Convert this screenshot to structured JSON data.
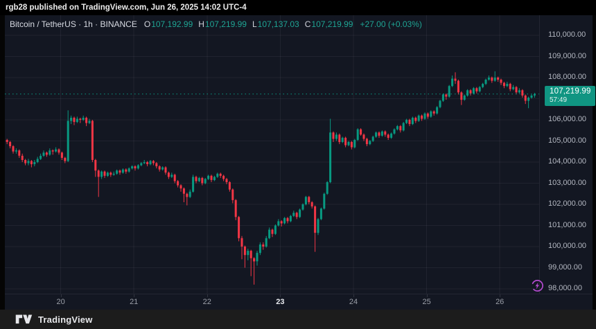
{
  "attribution": "rgb28 published on TradingView.com, Jun 26, 2025 14:02 UTC-4",
  "footer": {
    "brand": "TradingView"
  },
  "legend": {
    "symbol_title": "Bitcoin / TetherUS · 1h · BINANCE",
    "ohlc": [
      {
        "label": "O",
        "value": "107,192.99"
      },
      {
        "label": "H",
        "value": "107,219.99"
      },
      {
        "label": "L",
        "value": "107,137.03"
      },
      {
        "label": "C",
        "value": "107,219.99"
      }
    ],
    "change": "+27.00 (+0.03%)"
  },
  "price_scale": {
    "last_label": "107,219.99",
    "countdown": "57:49"
  },
  "icons": {
    "flash": "lightning-boost-icon",
    "logo": "tradingview-logo"
  },
  "colors": {
    "up": "#089981",
    "down": "#f23645",
    "badge": "#109582",
    "background": "#131722",
    "outer": "#000000",
    "flash_purple": "#b44bcf"
  },
  "chart_data": {
    "type": "candlestick",
    "pair": "Bitcoin / TetherUS",
    "interval": "1h",
    "exchange": "BINANCE",
    "last_price": 107219.99,
    "units": "OHLC values stored in thousands of USD",
    "ylim": [
      97650,
      110350
    ],
    "grid": true,
    "price_ticks": [
      {
        "v": 110000,
        "label": "110,000.00"
      },
      {
        "v": 109000,
        "label": "109,000.00"
      },
      {
        "v": 108000,
        "label": "108,000.00"
      },
      {
        "v": 107000,
        "label": ""
      },
      {
        "v": 106000,
        "label": "106,000.00"
      },
      {
        "v": 105000,
        "label": "105,000.00"
      },
      {
        "v": 104000,
        "label": "104,000.00"
      },
      {
        "v": 103000,
        "label": "103,000.00"
      },
      {
        "v": 102000,
        "label": "102,000.00"
      },
      {
        "v": 101000,
        "label": "101,000.00"
      },
      {
        "v": 100000,
        "label": "100,000.00"
      },
      {
        "v": 99000,
        "label": "99,000.00"
      },
      {
        "v": 98000,
        "label": "98,000.00"
      }
    ],
    "day_ticks": [
      {
        "i": 17.6,
        "label": "20",
        "bold": false
      },
      {
        "i": 41.6,
        "label": "21",
        "bold": false
      },
      {
        "i": 65.6,
        "label": "22",
        "bold": false
      },
      {
        "i": 89.6,
        "label": "23",
        "bold": true
      },
      {
        "i": 113.6,
        "label": "24",
        "bold": false
      },
      {
        "i": 137.6,
        "label": "25",
        "bold": false
      },
      {
        "i": 161.6,
        "label": "26",
        "bold": false
      }
    ],
    "candles_ohlc_k": [
      [
        105.05,
        105.1,
        104.85,
        104.95
      ],
      [
        104.95,
        105.0,
        104.65,
        104.75
      ],
      [
        104.75,
        104.8,
        104.4,
        104.5
      ],
      [
        104.5,
        104.65,
        104.4,
        104.55
      ],
      [
        104.55,
        104.6,
        104.2,
        104.3
      ],
      [
        104.3,
        104.4,
        104.0,
        104.1
      ],
      [
        104.1,
        104.15,
        103.85,
        103.95
      ],
      [
        103.95,
        104.15,
        103.85,
        104.05
      ],
      [
        104.05,
        104.1,
        103.75,
        103.9
      ],
      [
        103.9,
        104.1,
        103.8,
        104.0
      ],
      [
        104.0,
        104.25,
        103.95,
        104.15
      ],
      [
        104.15,
        104.4,
        104.1,
        104.3
      ],
      [
        104.3,
        104.55,
        104.25,
        104.45
      ],
      [
        104.45,
        104.5,
        104.25,
        104.35
      ],
      [
        104.35,
        104.65,
        104.3,
        104.55
      ],
      [
        104.55,
        104.6,
        104.35,
        104.5
      ],
      [
        104.5,
        104.7,
        104.45,
        104.6
      ],
      [
        104.6,
        104.65,
        104.35,
        104.45
      ],
      [
        104.45,
        104.5,
        104.1,
        104.2
      ],
      [
        104.2,
        104.25,
        103.95,
        104.05
      ],
      [
        104.05,
        106.45,
        104.0,
        105.95
      ],
      [
        105.95,
        106.2,
        105.8,
        106.1
      ],
      [
        106.1,
        106.15,
        105.75,
        105.9
      ],
      [
        105.9,
        106.15,
        105.85,
        106.05
      ],
      [
        106.05,
        106.1,
        105.85,
        106.0
      ],
      [
        106.0,
        106.2,
        105.95,
        106.1
      ],
      [
        106.1,
        106.15,
        105.7,
        105.85
      ],
      [
        105.85,
        106.05,
        105.8,
        105.95
      ],
      [
        105.95,
        106.0,
        104.0,
        104.1
      ],
      [
        104.1,
        104.15,
        103.3,
        103.6
      ],
      [
        103.6,
        103.65,
        102.35,
        103.3
      ],
      [
        103.3,
        103.6,
        103.2,
        103.55
      ],
      [
        103.55,
        103.6,
        103.25,
        103.35
      ],
      [
        103.35,
        103.55,
        103.3,
        103.5
      ],
      [
        103.5,
        103.55,
        103.3,
        103.4
      ],
      [
        103.4,
        103.55,
        103.35,
        103.45
      ],
      [
        103.45,
        103.65,
        103.4,
        103.6
      ],
      [
        103.6,
        103.65,
        103.4,
        103.5
      ],
      [
        103.5,
        103.7,
        103.45,
        103.65
      ],
      [
        103.65,
        103.7,
        103.45,
        103.55
      ],
      [
        103.55,
        103.75,
        103.5,
        103.7
      ],
      [
        103.7,
        103.85,
        103.65,
        103.8
      ],
      [
        103.8,
        103.85,
        103.6,
        103.7
      ],
      [
        103.7,
        103.9,
        103.65,
        103.85
      ],
      [
        103.85,
        104.0,
        103.8,
        103.95
      ],
      [
        103.95,
        104.1,
        103.9,
        104.0
      ],
      [
        104.0,
        104.05,
        103.8,
        103.9
      ],
      [
        103.9,
        104.1,
        103.85,
        104.05
      ],
      [
        104.05,
        104.1,
        103.85,
        103.95
      ],
      [
        103.95,
        104.0,
        103.7,
        103.8
      ],
      [
        103.8,
        103.85,
        103.55,
        103.65
      ],
      [
        103.65,
        103.8,
        103.6,
        103.75
      ],
      [
        103.75,
        103.8,
        103.4,
        103.5
      ],
      [
        103.5,
        103.55,
        103.2,
        103.3
      ],
      [
        103.3,
        103.5,
        103.25,
        103.4
      ],
      [
        103.4,
        103.45,
        103.0,
        103.1
      ],
      [
        103.1,
        103.15,
        102.8,
        102.9
      ],
      [
        102.9,
        102.95,
        102.6,
        102.75
      ],
      [
        102.75,
        102.8,
        102.1,
        102.5
      ],
      [
        102.5,
        102.55,
        101.95,
        102.35
      ],
      [
        102.35,
        102.7,
        102.3,
        102.6
      ],
      [
        102.6,
        103.4,
        102.55,
        103.3
      ],
      [
        103.3,
        103.35,
        103.0,
        103.1
      ],
      [
        103.1,
        103.3,
        103.05,
        103.25
      ],
      [
        103.25,
        103.3,
        102.9,
        103.0
      ],
      [
        103.0,
        103.25,
        102.95,
        103.2
      ],
      [
        103.2,
        103.4,
        103.15,
        103.35
      ],
      [
        103.35,
        103.4,
        103.05,
        103.15
      ],
      [
        103.15,
        103.35,
        103.1,
        103.3
      ],
      [
        103.3,
        103.5,
        103.25,
        103.45
      ],
      [
        103.45,
        103.5,
        103.25,
        103.35
      ],
      [
        103.35,
        103.4,
        103.1,
        103.2
      ],
      [
        103.2,
        103.25,
        102.95,
        103.05
      ],
      [
        103.05,
        103.1,
        102.6,
        102.7
      ],
      [
        102.7,
        102.75,
        102.05,
        102.2
      ],
      [
        102.2,
        102.25,
        101.25,
        101.4
      ],
      [
        101.4,
        101.45,
        100.25,
        100.4
      ],
      [
        100.4,
        100.5,
        99.4,
        100.0
      ],
      [
        100.0,
        100.05,
        99.0,
        99.6
      ],
      [
        99.6,
        99.9,
        99.35,
        99.8
      ],
      [
        99.8,
        99.85,
        98.6,
        99.45
      ],
      [
        99.45,
        99.5,
        98.2,
        99.3
      ],
      [
        99.3,
        99.8,
        99.1,
        99.7
      ],
      [
        99.7,
        100.2,
        99.6,
        100.1
      ],
      [
        100.1,
        100.2,
        99.85,
        100.0
      ],
      [
        100.0,
        100.5,
        99.95,
        100.4
      ],
      [
        100.4,
        100.9,
        100.35,
        100.8
      ],
      [
        100.8,
        100.85,
        100.45,
        100.6
      ],
      [
        100.6,
        101.05,
        100.55,
        101.0
      ],
      [
        101.0,
        101.3,
        100.95,
        101.2
      ],
      [
        101.2,
        101.25,
        100.95,
        101.1
      ],
      [
        101.1,
        101.4,
        101.05,
        101.35
      ],
      [
        101.35,
        101.4,
        101.1,
        101.2
      ],
      [
        101.2,
        101.5,
        101.15,
        101.45
      ],
      [
        101.45,
        101.7,
        101.4,
        101.6
      ],
      [
        101.6,
        101.65,
        101.3,
        101.4
      ],
      [
        101.4,
        101.8,
        101.35,
        101.75
      ],
      [
        101.75,
        102.05,
        101.7,
        102.0
      ],
      [
        102.0,
        102.4,
        101.95,
        102.35
      ],
      [
        102.35,
        102.4,
        102.0,
        102.1
      ],
      [
        102.1,
        102.15,
        101.8,
        101.9
      ],
      [
        101.9,
        101.95,
        99.75,
        100.65
      ],
      [
        100.65,
        101.35,
        100.55,
        101.3
      ],
      [
        101.3,
        101.85,
        101.25,
        101.8
      ],
      [
        101.8,
        102.55,
        101.75,
        102.5
      ],
      [
        102.5,
        103.1,
        102.45,
        103.05
      ],
      [
        103.05,
        106.05,
        103.0,
        105.4
      ],
      [
        105.4,
        105.45,
        104.95,
        105.1
      ],
      [
        105.1,
        105.4,
        105.0,
        105.3
      ],
      [
        105.3,
        105.35,
        104.85,
        104.95
      ],
      [
        104.95,
        105.2,
        104.9,
        105.15
      ],
      [
        105.15,
        105.2,
        104.7,
        104.8
      ],
      [
        104.8,
        105.0,
        104.75,
        104.95
      ],
      [
        104.95,
        105.0,
        104.6,
        104.7
      ],
      [
        104.7,
        105.1,
        104.65,
        105.05
      ],
      [
        105.05,
        105.6,
        105.0,
        105.55
      ],
      [
        105.55,
        105.6,
        105.25,
        105.3
      ],
      [
        105.3,
        105.35,
        105.0,
        105.1
      ],
      [
        105.1,
        105.15,
        104.75,
        104.85
      ],
      [
        104.85,
        105.05,
        104.8,
        105.0
      ],
      [
        105.0,
        105.25,
        104.95,
        105.2
      ],
      [
        105.2,
        105.45,
        105.15,
        105.4
      ],
      [
        105.4,
        105.45,
        105.15,
        105.25
      ],
      [
        105.25,
        105.5,
        105.2,
        105.45
      ],
      [
        105.45,
        105.5,
        105.2,
        105.3
      ],
      [
        105.3,
        105.35,
        105.05,
        105.15
      ],
      [
        105.15,
        105.4,
        105.1,
        105.35
      ],
      [
        105.35,
        105.6,
        105.3,
        105.55
      ],
      [
        105.55,
        105.75,
        105.5,
        105.7
      ],
      [
        105.7,
        105.75,
        105.4,
        105.5
      ],
      [
        105.5,
        105.9,
        105.45,
        105.85
      ],
      [
        105.85,
        106.05,
        105.8,
        106.0
      ],
      [
        106.0,
        106.05,
        105.7,
        105.8
      ],
      [
        105.8,
        106.15,
        105.75,
        106.1
      ],
      [
        106.1,
        106.15,
        105.85,
        105.95
      ],
      [
        105.95,
        106.25,
        105.9,
        106.2
      ],
      [
        106.2,
        106.25,
        105.95,
        106.05
      ],
      [
        106.05,
        106.35,
        106.0,
        106.3
      ],
      [
        106.3,
        106.35,
        106.05,
        106.15
      ],
      [
        106.15,
        106.45,
        106.1,
        106.4
      ],
      [
        106.4,
        106.45,
        106.2,
        106.3
      ],
      [
        106.3,
        106.65,
        106.25,
        106.6
      ],
      [
        106.6,
        106.95,
        106.55,
        106.9
      ],
      [
        106.9,
        107.25,
        106.85,
        107.2
      ],
      [
        107.2,
        107.25,
        106.95,
        107.1
      ],
      [
        107.1,
        107.65,
        107.05,
        107.6
      ],
      [
        107.6,
        108.1,
        107.55,
        107.95
      ],
      [
        107.95,
        108.25,
        107.7,
        107.85
      ],
      [
        107.85,
        107.9,
        107.2,
        107.3
      ],
      [
        107.3,
        107.35,
        106.7,
        106.95
      ],
      [
        106.95,
        107.2,
        106.9,
        107.15
      ],
      [
        107.15,
        107.45,
        107.1,
        107.4
      ],
      [
        107.4,
        107.45,
        107.15,
        107.25
      ],
      [
        107.25,
        107.55,
        107.2,
        107.5
      ],
      [
        107.5,
        107.55,
        107.25,
        107.35
      ],
      [
        107.35,
        107.6,
        107.3,
        107.55
      ],
      [
        107.55,
        107.75,
        107.5,
        107.7
      ],
      [
        107.7,
        107.95,
        107.65,
        107.9
      ],
      [
        107.9,
        108.1,
        107.85,
        108.0
      ],
      [
        108.0,
        108.05,
        107.75,
        107.85
      ],
      [
        107.85,
        108.3,
        107.8,
        108.0
      ],
      [
        108.0,
        108.05,
        107.8,
        107.9
      ],
      [
        107.9,
        107.95,
        107.65,
        107.75
      ],
      [
        107.75,
        107.8,
        107.5,
        107.6
      ],
      [
        107.6,
        107.8,
        107.55,
        107.7
      ],
      [
        107.7,
        107.75,
        107.35,
        107.45
      ],
      [
        107.45,
        107.65,
        107.4,
        107.55
      ],
      [
        107.55,
        107.6,
        107.2,
        107.3
      ],
      [
        107.3,
        107.5,
        107.25,
        107.4
      ],
      [
        107.4,
        107.45,
        107.05,
        107.15
      ],
      [
        107.15,
        107.2,
        106.75,
        106.9
      ],
      [
        106.9,
        107.1,
        106.55,
        107.05
      ],
      [
        107.05,
        107.2,
        107.0,
        107.15
      ],
      [
        107.15,
        107.28,
        107.05,
        107.22
      ]
    ]
  }
}
